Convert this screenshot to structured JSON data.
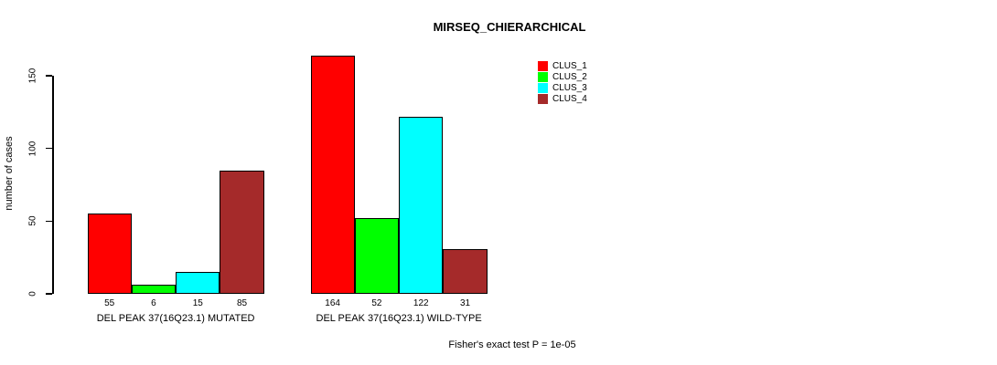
{
  "chart_data": {
    "type": "bar",
    "title": "MIRSEQ_CHIERARCHICAL",
    "ylabel": "number of cases",
    "ylim": [
      0,
      150
    ],
    "yticks": [
      0,
      50,
      100,
      150
    ],
    "grid": false,
    "legend_position": "top-right",
    "bar_value_labels_shown": true,
    "categories": [
      "DEL PEAK 37(16Q23.1) MUTATED",
      "DEL PEAK 37(16Q23.1) WILD-TYPE"
    ],
    "series": [
      {
        "name": "CLUS_1",
        "color": "#FF0000",
        "values": [
          55,
          164
        ]
      },
      {
        "name": "CLUS_2",
        "color": "#00FF00",
        "values": [
          6,
          52
        ]
      },
      {
        "name": "CLUS_3",
        "color": "#00FFFF",
        "values": [
          15,
          122
        ]
      },
      {
        "name": "CLUS_4",
        "color": "#A52A2A",
        "values": [
          85,
          31
        ]
      }
    ],
    "annotation": "Fisher's exact test P = 1e-05"
  }
}
